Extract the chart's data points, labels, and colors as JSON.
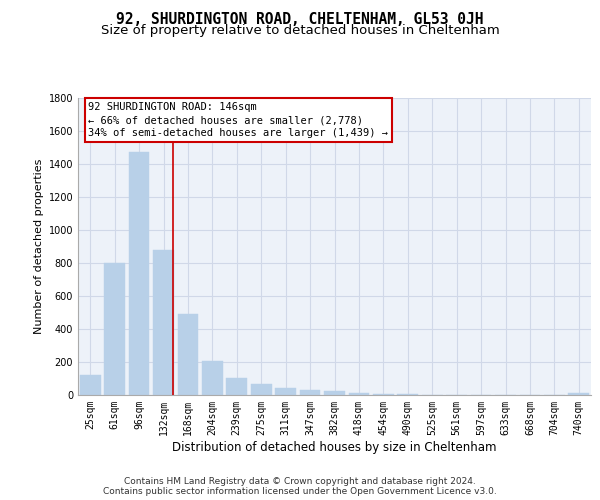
{
  "title1": "92, SHURDINGTON ROAD, CHELTENHAM, GL53 0JH",
  "title2": "Size of property relative to detached houses in Cheltenham",
  "xlabel": "Distribution of detached houses by size in Cheltenham",
  "ylabel": "Number of detached properties",
  "categories": [
    "25sqm",
    "61sqm",
    "96sqm",
    "132sqm",
    "168sqm",
    "204sqm",
    "239sqm",
    "275sqm",
    "311sqm",
    "347sqm",
    "382sqm",
    "418sqm",
    "454sqm",
    "490sqm",
    "525sqm",
    "561sqm",
    "597sqm",
    "633sqm",
    "668sqm",
    "704sqm",
    "740sqm"
  ],
  "values": [
    120,
    800,
    1470,
    880,
    490,
    205,
    105,
    65,
    45,
    32,
    25,
    15,
    8,
    4,
    2,
    1,
    1,
    0,
    0,
    0,
    15
  ],
  "bar_color": "#b8d0e8",
  "bar_edge_color": "#b8d0e8",
  "grid_color": "#d0d8e8",
  "bg_color": "#edf2f9",
  "annotation_text": "92 SHURDINGTON ROAD: 146sqm\n← 66% of detached houses are smaller (2,778)\n34% of semi-detached houses are larger (1,439) →",
  "annotation_box_color": "#cc0000",
  "ylim": [
    0,
    1800
  ],
  "yticks": [
    0,
    200,
    400,
    600,
    800,
    1000,
    1200,
    1400,
    1600,
    1800
  ],
  "footer_line1": "Contains HM Land Registry data © Crown copyright and database right 2024.",
  "footer_line2": "Contains public sector information licensed under the Open Government Licence v3.0.",
  "title1_fontsize": 10.5,
  "title2_fontsize": 9.5,
  "xlabel_fontsize": 8.5,
  "ylabel_fontsize": 8,
  "tick_fontsize": 7,
  "annotation_fontsize": 7.5,
  "footer_fontsize": 6.5
}
